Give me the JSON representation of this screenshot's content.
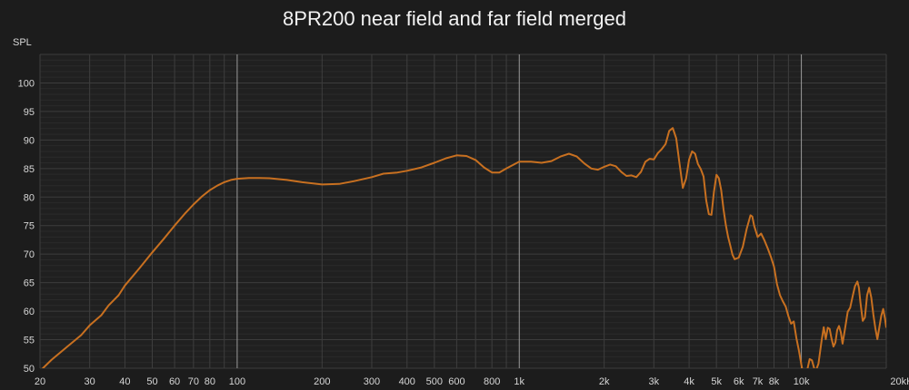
{
  "chart_data": {
    "type": "line",
    "title": "8PR200 near field and far field merged",
    "ylabel": "SPL",
    "xlabel": "",
    "x_scale": "log",
    "xlim": [
      20,
      20000
    ],
    "ylim": [
      50,
      105
    ],
    "grid": true,
    "x_ticks": [
      {
        "value": 20,
        "label": "20"
      },
      {
        "value": 30,
        "label": "30"
      },
      {
        "value": 40,
        "label": "40"
      },
      {
        "value": 50,
        "label": "50"
      },
      {
        "value": 60,
        "label": "60"
      },
      {
        "value": 70,
        "label": "70"
      },
      {
        "value": 80,
        "label": "80"
      },
      {
        "value": 100,
        "label": "100"
      },
      {
        "value": 200,
        "label": "200"
      },
      {
        "value": 300,
        "label": "300"
      },
      {
        "value": 400,
        "label": "400"
      },
      {
        "value": 500,
        "label": "500"
      },
      {
        "value": 600,
        "label": "600"
      },
      {
        "value": 800,
        "label": "800"
      },
      {
        "value": 1000,
        "label": "1k"
      },
      {
        "value": 2000,
        "label": "2k"
      },
      {
        "value": 3000,
        "label": "3k"
      },
      {
        "value": 4000,
        "label": "4k"
      },
      {
        "value": 5000,
        "label": "5k"
      },
      {
        "value": 6000,
        "label": "6k"
      },
      {
        "value": 7000,
        "label": "7k"
      },
      {
        "value": 8000,
        "label": "8k"
      },
      {
        "value": 10000,
        "label": "10k"
      },
      {
        "value": 20000,
        "label": "20kHz"
      }
    ],
    "y_ticks": [
      50,
      55,
      60,
      65,
      70,
      75,
      80,
      85,
      90,
      95,
      100
    ],
    "series": [
      {
        "color": "#c87020",
        "points": [
          [
            20,
            49.5
          ],
          [
            22,
            51.5
          ],
          [
            25,
            53.8
          ],
          [
            28,
            55.8
          ],
          [
            30,
            57.5
          ],
          [
            33,
            59.3
          ],
          [
            35,
            61
          ],
          [
            38,
            62.8
          ],
          [
            40,
            64.5
          ],
          [
            45,
            67.5
          ],
          [
            50,
            70.3
          ],
          [
            55,
            72.7
          ],
          [
            60,
            75
          ],
          [
            65,
            77
          ],
          [
            70,
            78.7
          ],
          [
            75,
            80.1
          ],
          [
            80,
            81.2
          ],
          [
            85,
            82
          ],
          [
            90,
            82.6
          ],
          [
            95,
            83
          ],
          [
            100,
            83.2
          ],
          [
            110,
            83.35
          ],
          [
            120,
            83.35
          ],
          [
            130,
            83.3
          ],
          [
            150,
            83
          ],
          [
            170,
            82.6
          ],
          [
            200,
            82.2
          ],
          [
            230,
            82.3
          ],
          [
            260,
            82.8
          ],
          [
            300,
            83.5
          ],
          [
            330,
            84.1
          ],
          [
            370,
            84.3
          ],
          [
            400,
            84.6
          ],
          [
            450,
            85.2
          ],
          [
            500,
            86
          ],
          [
            550,
            86.8
          ],
          [
            600,
            87.3
          ],
          [
            650,
            87.2
          ],
          [
            700,
            86.5
          ],
          [
            750,
            85.2
          ],
          [
            800,
            84.3
          ],
          [
            850,
            84.3
          ],
          [
            900,
            85
          ],
          [
            1000,
            86.2
          ],
          [
            1100,
            86.2
          ],
          [
            1200,
            86
          ],
          [
            1300,
            86.3
          ],
          [
            1400,
            87.1
          ],
          [
            1500,
            87.6
          ],
          [
            1600,
            87.1
          ],
          [
            1700,
            85.9
          ],
          [
            1800,
            85
          ],
          [
            1900,
            84.8
          ],
          [
            2000,
            85.3
          ],
          [
            2100,
            85.7
          ],
          [
            2200,
            85.4
          ],
          [
            2300,
            84.4
          ],
          [
            2400,
            83.7
          ],
          [
            2500,
            83.8
          ],
          [
            2600,
            83.5
          ],
          [
            2700,
            84.4
          ],
          [
            2800,
            86.2
          ],
          [
            2900,
            86.7
          ],
          [
            3000,
            86.6
          ],
          [
            3100,
            87.7
          ],
          [
            3200,
            88.4
          ],
          [
            3300,
            89.3
          ],
          [
            3400,
            91.6
          ],
          [
            3500,
            92.1
          ],
          [
            3600,
            90.3
          ],
          [
            3700,
            85.8
          ],
          [
            3800,
            81.6
          ],
          [
            3900,
            83.2
          ],
          [
            4000,
            86.6
          ],
          [
            4100,
            88
          ],
          [
            4200,
            87.6
          ],
          [
            4300,
            85.8
          ],
          [
            4400,
            84.9
          ],
          [
            4500,
            83.6
          ],
          [
            4600,
            79.4
          ],
          [
            4700,
            77
          ],
          [
            4800,
            76.9
          ],
          [
            4900,
            80.9
          ],
          [
            5000,
            83.9
          ],
          [
            5100,
            83.3
          ],
          [
            5200,
            81.2
          ],
          [
            5300,
            77.8
          ],
          [
            5400,
            75.1
          ],
          [
            5500,
            73
          ],
          [
            5600,
            71.5
          ],
          [
            5700,
            69.9
          ],
          [
            5800,
            69.1
          ],
          [
            6000,
            69.4
          ],
          [
            6200,
            71.3
          ],
          [
            6400,
            74.4
          ],
          [
            6600,
            76.8
          ],
          [
            6700,
            76.6
          ],
          [
            6800,
            75
          ],
          [
            7000,
            73
          ],
          [
            7200,
            73.6
          ],
          [
            7400,
            72.4
          ],
          [
            7600,
            71
          ],
          [
            7800,
            69.5
          ],
          [
            8000,
            67.8
          ],
          [
            8200,
            64.7
          ],
          [
            8400,
            62.8
          ],
          [
            8600,
            61.7
          ],
          [
            8800,
            60.8
          ],
          [
            9000,
            59.1
          ],
          [
            9200,
            57.8
          ],
          [
            9400,
            58.2
          ],
          [
            9600,
            55.3
          ],
          [
            9800,
            53.1
          ],
          [
            10000,
            50.6
          ],
          [
            10200,
            48.5
          ],
          [
            10500,
            49.8
          ],
          [
            10700,
            51.6
          ],
          [
            10900,
            51.4
          ],
          [
            11200,
            49.3
          ],
          [
            11500,
            50.8
          ],
          [
            11800,
            54.9
          ],
          [
            12000,
            57.2
          ],
          [
            12200,
            55.1
          ],
          [
            12400,
            57.1
          ],
          [
            12600,
            56.9
          ],
          [
            12800,
            55.1
          ],
          [
            13000,
            53.8
          ],
          [
            13200,
            54.5
          ],
          [
            13400,
            56.7
          ],
          [
            13600,
            57.4
          ],
          [
            13800,
            56.3
          ],
          [
            14000,
            54.3
          ],
          [
            14300,
            57.1
          ],
          [
            14600,
            59.9
          ],
          [
            14900,
            60.6
          ],
          [
            15200,
            62.6
          ],
          [
            15500,
            64.4
          ],
          [
            15800,
            65.2
          ],
          [
            16000,
            64.1
          ],
          [
            16200,
            61.5
          ],
          [
            16500,
            58.3
          ],
          [
            16800,
            58.9
          ],
          [
            17100,
            62.8
          ],
          [
            17400,
            64.1
          ],
          [
            17700,
            62.4
          ],
          [
            18000,
            59.4
          ],
          [
            18300,
            57
          ],
          [
            18600,
            55.1
          ],
          [
            18900,
            57.2
          ],
          [
            19200,
            59.2
          ],
          [
            19500,
            60.4
          ],
          [
            19800,
            58.7
          ],
          [
            20000,
            57.1
          ]
        ]
      }
    ]
  }
}
